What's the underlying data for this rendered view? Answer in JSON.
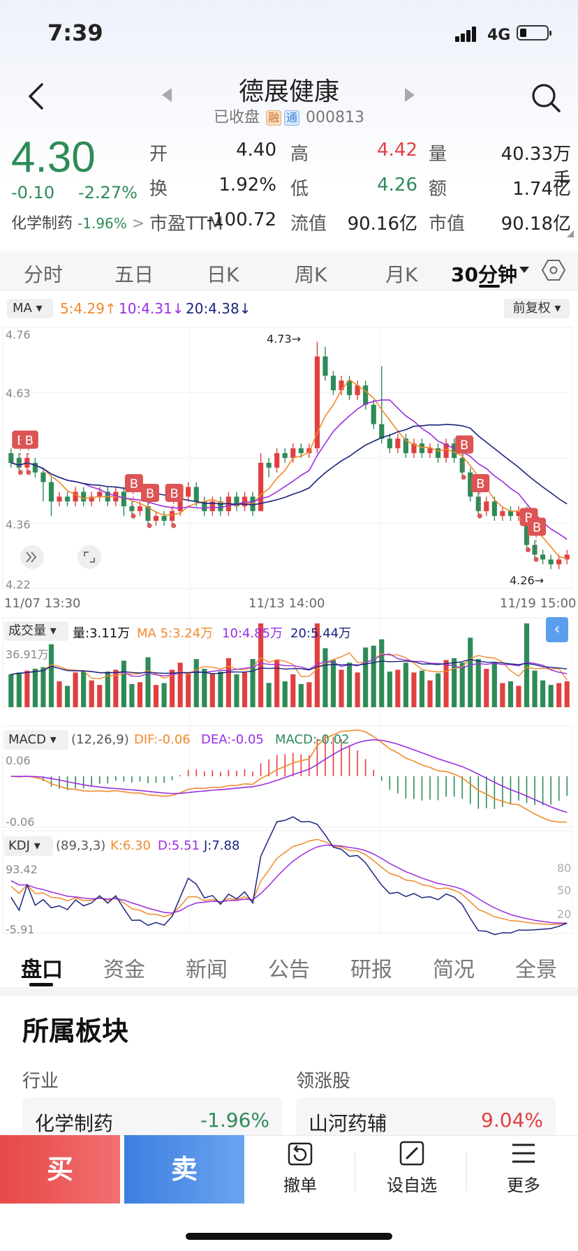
{
  "status": {
    "time": "7:39",
    "network": "4G"
  },
  "header": {
    "title": "德展健康",
    "status_text": "已收盘",
    "tag_rong": "融",
    "tag_tong": "通",
    "code": "000813"
  },
  "quote": {
    "price": "4.30",
    "change": "-0.10",
    "change_pct": "-2.27%",
    "sector_name": "化学制药",
    "sector_pct": "-1.96%",
    "fields": [
      {
        "label": "开",
        "value": "4.40",
        "color": "#222222"
      },
      {
        "label": "高",
        "value": "4.42",
        "color": "#e04040"
      },
      {
        "label": "量",
        "value": "40.33万手",
        "color": "#222222"
      },
      {
        "label": "换",
        "value": "1.92%",
        "color": "#222222"
      },
      {
        "label": "低",
        "value": "4.26",
        "color": "#2e8b57"
      },
      {
        "label": "额",
        "value": "1.74亿",
        "color": "#222222"
      },
      {
        "label": "市盈TTM",
        "value": "-100.72",
        "color": "#222222"
      },
      {
        "label": "流值",
        "value": "90.16亿",
        "color": "#222222"
      },
      {
        "label": "市值",
        "value": "90.18亿",
        "color": "#222222"
      }
    ]
  },
  "chart_tabs": [
    "分时",
    "五日",
    "日K",
    "周K",
    "月K",
    "30分钟"
  ],
  "ma": {
    "label": "MA",
    "ma5": "5:4.29",
    "ma10": "10:4.31",
    "ma20": "20:4.38",
    "adjust": "前复权"
  },
  "colors": {
    "up": "#e04040",
    "down": "#2e8b57",
    "ma5": "#f08a2a",
    "ma10": "#9a2ee0",
    "ma20": "#1a237e"
  },
  "chart_data": [
    {
      "type": "candlestick",
      "y_labels": [
        "4.76",
        "4.63",
        "4.36",
        "4.22"
      ],
      "ylim": [
        4.22,
        4.76
      ],
      "x_labels": [
        "11/07 13:30",
        "11/13 14:00",
        "11/19 15:00"
      ],
      "annotations": [
        {
          "text": "4.73",
          "x": 38,
          "y": 4.73
        },
        {
          "text": "4.26",
          "x": 67,
          "y": 4.26
        }
      ],
      "buy_markers": [
        1,
        2,
        15,
        17,
        20,
        56,
        58,
        64,
        65
      ],
      "candles": [
        [
          4.5,
          4.48,
          4.51,
          4.47
        ],
        [
          4.49,
          4.47,
          4.5,
          4.46
        ],
        [
          4.47,
          4.49,
          4.5,
          4.46
        ],
        [
          4.48,
          4.46,
          4.49,
          4.45
        ],
        [
          4.46,
          4.44,
          4.47,
          4.4
        ],
        [
          4.44,
          4.4,
          4.45,
          4.37
        ],
        [
          4.4,
          4.41,
          4.42,
          4.39
        ],
        [
          4.41,
          4.4,
          4.42,
          4.39
        ],
        [
          4.4,
          4.42,
          4.43,
          4.39
        ],
        [
          4.42,
          4.4,
          4.43,
          4.39
        ],
        [
          4.4,
          4.41,
          4.42,
          4.39
        ],
        [
          4.41,
          4.42,
          4.43,
          4.4
        ],
        [
          4.42,
          4.4,
          4.43,
          4.39
        ],
        [
          4.4,
          4.42,
          4.43,
          4.39
        ],
        [
          4.42,
          4.39,
          4.43,
          4.37
        ],
        [
          4.39,
          4.38,
          4.4,
          4.37
        ],
        [
          4.38,
          4.39,
          4.4,
          4.37
        ],
        [
          4.39,
          4.36,
          4.4,
          4.35
        ],
        [
          4.36,
          4.37,
          4.38,
          4.35
        ],
        [
          4.37,
          4.36,
          4.38,
          4.35
        ],
        [
          4.36,
          4.38,
          4.39,
          4.35
        ],
        [
          4.38,
          4.41,
          4.42,
          4.37
        ],
        [
          4.41,
          4.43,
          4.44,
          4.4
        ],
        [
          4.43,
          4.4,
          4.44,
          4.39
        ],
        [
          4.4,
          4.38,
          4.41,
          4.37
        ],
        [
          4.38,
          4.4,
          4.41,
          4.37
        ],
        [
          4.4,
          4.38,
          4.41,
          4.37
        ],
        [
          4.38,
          4.41,
          4.42,
          4.37
        ],
        [
          4.41,
          4.39,
          4.42,
          4.38
        ],
        [
          4.39,
          4.41,
          4.42,
          4.38
        ],
        [
          4.41,
          4.38,
          4.42,
          4.37
        ],
        [
          4.38,
          4.48,
          4.5,
          4.38
        ],
        [
          4.48,
          4.47,
          4.49,
          4.45
        ],
        [
          4.47,
          4.5,
          4.51,
          4.46
        ],
        [
          4.5,
          4.49,
          4.51,
          4.48
        ],
        [
          4.49,
          4.51,
          4.52,
          4.48
        ],
        [
          4.51,
          4.5,
          4.52,
          4.49
        ],
        [
          4.5,
          4.51,
          4.52,
          4.49
        ],
        [
          4.51,
          4.7,
          4.73,
          4.5
        ],
        [
          4.7,
          4.66,
          4.72,
          4.65
        ],
        [
          4.66,
          4.63,
          4.67,
          4.62
        ],
        [
          4.63,
          4.65,
          4.66,
          4.62
        ],
        [
          4.65,
          4.62,
          4.66,
          4.61
        ],
        [
          4.62,
          4.64,
          4.65,
          4.61
        ],
        [
          4.64,
          4.6,
          4.65,
          4.59
        ],
        [
          4.6,
          4.56,
          4.61,
          4.55
        ],
        [
          4.56,
          4.53,
          4.68,
          4.52
        ],
        [
          4.53,
          4.51,
          4.54,
          4.5
        ],
        [
          4.51,
          4.53,
          4.54,
          4.5
        ],
        [
          4.53,
          4.5,
          4.54,
          4.49
        ],
        [
          4.5,
          4.52,
          4.53,
          4.49
        ],
        [
          4.52,
          4.5,
          4.53,
          4.49
        ],
        [
          4.5,
          4.51,
          4.52,
          4.49
        ],
        [
          4.51,
          4.49,
          4.52,
          4.48
        ],
        [
          4.49,
          4.52,
          4.53,
          4.48
        ],
        [
          4.52,
          4.49,
          4.53,
          4.48
        ],
        [
          4.49,
          4.46,
          4.5,
          4.45
        ],
        [
          4.46,
          4.41,
          4.47,
          4.4
        ],
        [
          4.41,
          4.38,
          4.42,
          4.37
        ],
        [
          4.38,
          4.4,
          4.41,
          4.37
        ],
        [
          4.4,
          4.37,
          4.41,
          4.36
        ],
        [
          4.37,
          4.38,
          4.39,
          4.36
        ],
        [
          4.38,
          4.37,
          4.39,
          4.36
        ],
        [
          4.37,
          4.38,
          4.39,
          4.36
        ],
        [
          4.38,
          4.31,
          4.39,
          4.3
        ],
        [
          4.31,
          4.29,
          4.32,
          4.28
        ],
        [
          4.29,
          4.28,
          4.3,
          4.27
        ],
        [
          4.28,
          4.27,
          4.29,
          4.26
        ],
        [
          4.27,
          4.28,
          4.29,
          4.26
        ],
        [
          4.28,
          4.29,
          4.3,
          4.27
        ]
      ]
    },
    {
      "type": "bar",
      "name": "成交量",
      "label": "成交量",
      "vol": "量:3.11万",
      "ma5": "MA 5:3.24万",
      "ma10": "10:4.85万",
      "ma20": "20:5.44万",
      "ymax_label": "36.91万",
      "ylim": [
        0,
        36.91
      ]
    },
    {
      "type": "bar",
      "name": "MACD",
      "label": "MACD",
      "params": "(12,26,9)",
      "dif": "DIF:-0.06",
      "dea": "DEA:-0.05",
      "macd": "MACD:-0.02",
      "y_top": "0.06",
      "y_bottom": "-0.06",
      "ylim": [
        -0.06,
        0.06
      ]
    },
    {
      "type": "line",
      "name": "KDJ",
      "label": "KDJ",
      "params": "(89,3,3)",
      "k": "K:6.30",
      "d": "D:5.51",
      "j": "J:7.88",
      "y_top": "93.42",
      "y_bottom": "-5.91",
      "ticks": [
        "80",
        "50",
        "20"
      ],
      "ylim": [
        -5.91,
        93.42
      ]
    }
  ],
  "bottom_tabs": [
    "盘口",
    "资金",
    "新闻",
    "公告",
    "研报",
    "简况",
    "全景"
  ],
  "section": {
    "title": "所属板块",
    "industry_label": "行业",
    "leader_label": "领涨股",
    "industry": {
      "name": "化学制药",
      "pct": "-1.96%"
    },
    "leader": {
      "name": "山河药辅",
      "pct": "9.04%"
    }
  },
  "actions": {
    "buy": "买",
    "sell": "卖",
    "cancel": "撤单",
    "watch": "设自选",
    "more": "更多"
  }
}
